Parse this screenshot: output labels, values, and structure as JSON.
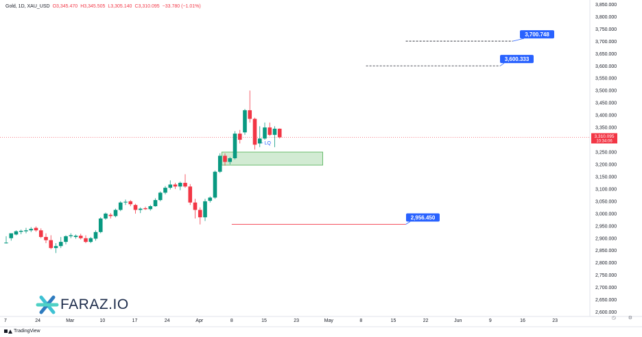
{
  "legend": {
    "symbol": "Gold, 1D, XAU_USD",
    "open": "O3,345.470",
    "high": "H3,345.505",
    "low": "L3,305.140",
    "close": "C3,310.095",
    "change": "−33.780 (−1.01%)"
  },
  "price_tag": {
    "price": "3,310.095",
    "countdown": "10:34:06"
  },
  "brand": {
    "tradingview": "TradingView",
    "watermark": "FARAZ.IO"
  },
  "chart_data": {
    "type": "candlestick",
    "symbol": "XAU_USD",
    "interval": "1D",
    "y_axis": {
      "range": [
        2582,
        3868
      ],
      "ticks": [
        "3,850.000",
        "3,800.000",
        "3,750.000",
        "3,700.000",
        "3,650.000",
        "3,600.000",
        "3,550.000",
        "3,500.000",
        "3,450.000",
        "3,400.000",
        "3,350.000",
        "3,300.000",
        "3,250.000",
        "3,200.000",
        "3,150.000",
        "3,100.000",
        "3,050.000",
        "3,000.000",
        "2,950.000",
        "2,900.000",
        "2,850.000",
        "2,800.000",
        "2,750.000",
        "2,700.000",
        "2,650.000",
        "2,600.000"
      ]
    },
    "x_axis": {
      "ticks": [
        {
          "label": "7",
          "slot": 0
        },
        {
          "label": "24",
          "slot": 6.5
        },
        {
          "label": "Mar",
          "slot": 13
        },
        {
          "label": "10",
          "slot": 19.5
        },
        {
          "label": "17",
          "slot": 26
        },
        {
          "label": "24",
          "slot": 32.5
        },
        {
          "label": "Apr",
          "slot": 39
        },
        {
          "label": "8",
          "slot": 45.5
        },
        {
          "label": "15",
          "slot": 52
        },
        {
          "label": "23",
          "slot": 58.5
        },
        {
          "label": "May",
          "slot": 65
        },
        {
          "label": "8",
          "slot": 71.5
        },
        {
          "label": "15",
          "slot": 78
        },
        {
          "label": "22",
          "slot": 84.5
        },
        {
          "label": "Jun",
          "slot": 91
        },
        {
          "label": "9",
          "slot": 97.5
        },
        {
          "label": "16",
          "slot": 104
        },
        {
          "label": "23",
          "slot": 110.5
        }
      ]
    },
    "candles": [
      {
        "o": 2880,
        "h": 2908,
        "l": 2878,
        "c": 2882
      },
      {
        "o": 2900,
        "h": 2918,
        "l": 2890,
        "c": 2920
      },
      {
        "o": 2915,
        "h": 2932,
        "l": 2912,
        "c": 2928
      },
      {
        "o": 2926,
        "h": 2935,
        "l": 2916,
        "c": 2930
      },
      {
        "o": 2928,
        "h": 2942,
        "l": 2920,
        "c": 2932
      },
      {
        "o": 2932,
        "h": 2945,
        "l": 2925,
        "c": 2938
      },
      {
        "o": 2942,
        "h": 2948,
        "l": 2926,
        "c": 2932
      },
      {
        "o": 2932,
        "h": 2940,
        "l": 2900,
        "c": 2905
      },
      {
        "o": 2905,
        "h": 2920,
        "l": 2880,
        "c": 2892
      },
      {
        "o": 2892,
        "h": 2912,
        "l": 2855,
        "c": 2860
      },
      {
        "o": 2860,
        "h": 2880,
        "l": 2840,
        "c": 2868
      },
      {
        "o": 2868,
        "h": 2905,
        "l": 2860,
        "c": 2885
      },
      {
        "o": 2885,
        "h": 2912,
        "l": 2875,
        "c": 2908
      },
      {
        "o": 2908,
        "h": 2920,
        "l": 2900,
        "c": 2912
      },
      {
        "o": 2905,
        "h": 2915,
        "l": 2898,
        "c": 2910
      },
      {
        "o": 2910,
        "h": 2918,
        "l": 2895,
        "c": 2900
      },
      {
        "o": 2900,
        "h": 2912,
        "l": 2880,
        "c": 2885
      },
      {
        "o": 2885,
        "h": 2905,
        "l": 2880,
        "c": 2900
      },
      {
        "o": 2898,
        "h": 2932,
        "l": 2890,
        "c": 2925
      },
      {
        "o": 2925,
        "h": 2985,
        "l": 2920,
        "c": 2980
      },
      {
        "o": 2980,
        "h": 3004,
        "l": 2975,
        "c": 3000
      },
      {
        "o": 2995,
        "h": 3002,
        "l": 2980,
        "c": 2990
      },
      {
        "o": 2990,
        "h": 3020,
        "l": 2985,
        "c": 3015
      },
      {
        "o": 3015,
        "h": 3050,
        "l": 3010,
        "c": 3045
      },
      {
        "o": 3045,
        "h": 3057,
        "l": 3035,
        "c": 3048
      },
      {
        "o": 3050,
        "h": 3055,
        "l": 3030,
        "c": 3038
      },
      {
        "o": 3035,
        "h": 3040,
        "l": 3000,
        "c": 3015
      },
      {
        "o": 3015,
        "h": 3025,
        "l": 3002,
        "c": 3020
      },
      {
        "o": 3022,
        "h": 3028,
        "l": 3015,
        "c": 3018
      },
      {
        "o": 3018,
        "h": 3035,
        "l": 3012,
        "c": 3030
      },
      {
        "o": 3030,
        "h": 3062,
        "l": 3028,
        "c": 3055
      },
      {
        "o": 3055,
        "h": 3090,
        "l": 3050,
        "c": 3085
      },
      {
        "o": 3085,
        "h": 3112,
        "l": 3078,
        "c": 3105
      },
      {
        "o": 3105,
        "h": 3135,
        "l": 3098,
        "c": 3118
      },
      {
        "o": 3118,
        "h": 3125,
        "l": 3100,
        "c": 3110
      },
      {
        "o": 3110,
        "h": 3130,
        "l": 3095,
        "c": 3125
      },
      {
        "o": 3125,
        "h": 3160,
        "l": 3105,
        "c": 3110
      },
      {
        "o": 3110,
        "h": 3120,
        "l": 3035,
        "c": 3045
      },
      {
        "o": 3045,
        "h": 3060,
        "l": 2980,
        "c": 3015
      },
      {
        "o": 3015,
        "h": 3025,
        "l": 2956,
        "c": 2985
      },
      {
        "o": 2985,
        "h": 3060,
        "l": 2970,
        "c": 3050
      },
      {
        "o": 3052,
        "h": 3070,
        "l": 3045,
        "c": 3065
      },
      {
        "o": 3065,
        "h": 3175,
        "l": 3060,
        "c": 3170
      },
      {
        "o": 3170,
        "h": 3245,
        "l": 3165,
        "c": 3235
      },
      {
        "o": 3235,
        "h": 3245,
        "l": 3195,
        "c": 3210
      },
      {
        "o": 3210,
        "h": 3230,
        "l": 3200,
        "c": 3225
      },
      {
        "o": 3225,
        "h": 3335,
        "l": 3220,
        "c": 3325
      },
      {
        "o": 3325,
        "h": 3340,
        "l": 3285,
        "c": 3300
      },
      {
        "o": 3330,
        "h": 3425,
        "l": 3320,
        "c": 3420
      },
      {
        "o": 3420,
        "h": 3500,
        "l": 3370,
        "c": 3385
      },
      {
        "o": 3385,
        "h": 3390,
        "l": 3260,
        "c": 3280
      },
      {
        "o": 3285,
        "h": 3355,
        "l": 3270,
        "c": 3305
      },
      {
        "o": 3305,
        "h": 3370,
        "l": 3300,
        "c": 3350
      },
      {
        "o": 3350,
        "h": 3370,
        "l": 3315,
        "c": 3320
      },
      {
        "o": 3320,
        "h": 3355,
        "l": 3270,
        "c": 3345
      },
      {
        "o": 3345,
        "h": 3346,
        "l": 3305,
        "c": 3310
      }
    ],
    "levels": [
      {
        "price": 3700.748,
        "label": "3,700.748",
        "style": "dashed",
        "color": "#131722"
      },
      {
        "price": 3600.333,
        "label": "3,600.333",
        "style": "dashed",
        "color": "#131722"
      },
      {
        "price": 2956.45,
        "label": "2,956.450",
        "style": "solid",
        "color": "#f23645"
      }
    ],
    "zone": {
      "top": 3250,
      "bottom": 3197,
      "color": "#4caf50"
    },
    "annotation": {
      "text": "- LQ",
      "price": 3288
    },
    "last_price": 3310.095,
    "colors": {
      "up": "#089981",
      "down": "#f23645",
      "tag": "#2962ff"
    }
  }
}
